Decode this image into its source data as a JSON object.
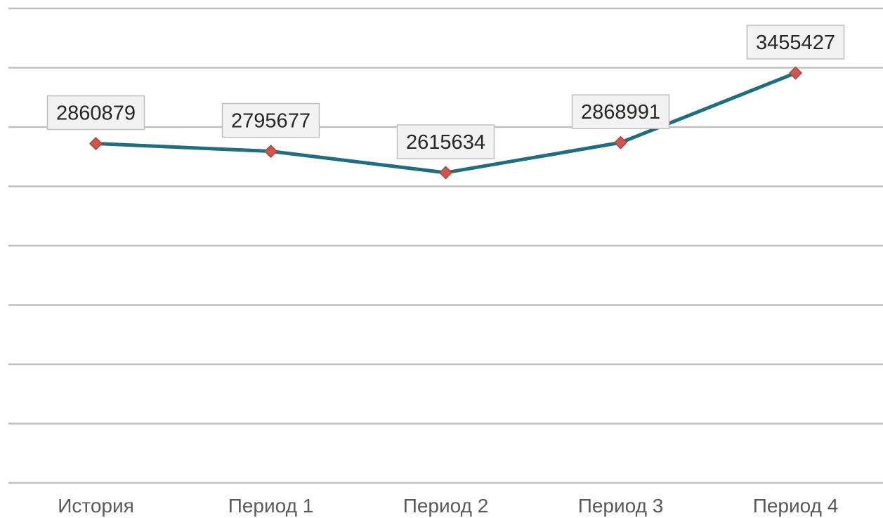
{
  "chart_data": {
    "type": "line",
    "categories": [
      "История",
      "Период 1",
      "Период 2",
      "Период 3",
      "Период 4"
    ],
    "series": [
      {
        "values": [
          2860879,
          2795677,
          2615634,
          2868991,
          3455427
        ]
      }
    ],
    "ylim": [
      0,
      4000000
    ],
    "ytick_step": 500000,
    "grid": true,
    "legend": "none",
    "data_labels": true,
    "colors": {
      "line": "#1F6E7F",
      "marker": "#D0564B",
      "marker_edge": "#A8473D",
      "grid": "#BFBFBF",
      "label_box": "#F2F2F2",
      "label_border": "#BFBFBF",
      "tick_text": "#595959",
      "label_text": "#262626"
    }
  }
}
